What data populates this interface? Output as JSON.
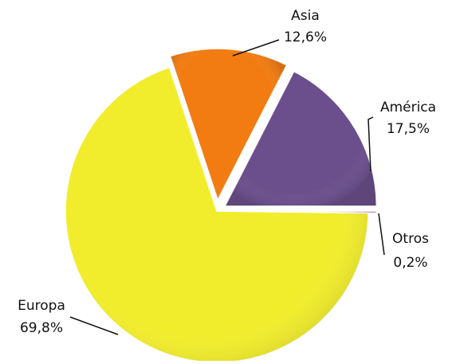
{
  "chart_data": {
    "type": "pie",
    "categories": [
      "América",
      "Asia",
      "Europa",
      "Otros"
    ],
    "values": [
      17.5,
      12.6,
      69.8,
      0.2
    ],
    "value_labels": [
      "17,5%",
      "12,6%",
      "69,8%",
      "0,2%"
    ],
    "colors": [
      "#6b4f8c",
      "#f27c12",
      "#f1ed2c",
      "#b57fc6"
    ]
  }
}
